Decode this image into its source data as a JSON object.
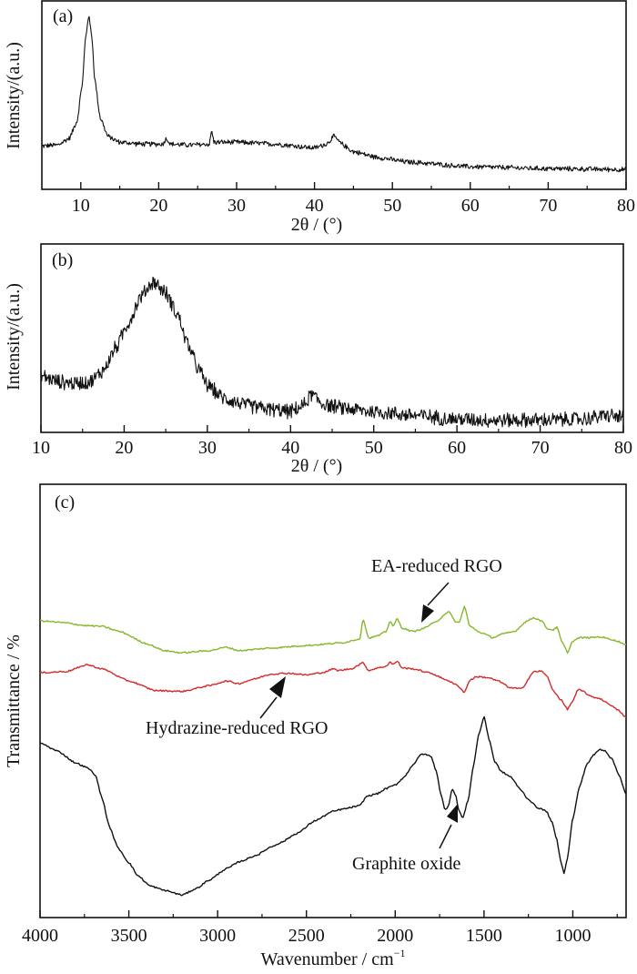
{
  "chart_data": [
    {
      "type": "line",
      "panel_label": "(a)",
      "xlabel": "2θ / (°)",
      "ylabel": "Intensity/(a.u.)",
      "xlim": [
        5,
        80
      ],
      "ylim": [
        0,
        100
      ],
      "xticks": [
        10,
        20,
        30,
        40,
        50,
        60,
        70,
        80
      ],
      "xtick_labels": [
        "10",
        "20",
        "30",
        "40",
        "50",
        "60",
        "70",
        "80"
      ],
      "minor_xticks": [
        15,
        25,
        35,
        45,
        55,
        65,
        75
      ],
      "grid": false,
      "series": [
        {
          "name": "XRD (a)",
          "color": "#111111",
          "noise": 3,
          "x": [
            5,
            7,
            8.5,
            9.5,
            10.2,
            10.6,
            11,
            11.4,
            11.8,
            12.5,
            13.5,
            15,
            18,
            20.5,
            21,
            21.5,
            24,
            26.5,
            26.8,
            27.1,
            30,
            35,
            40,
            41.5,
            42.5,
            43.5,
            45,
            48,
            52,
            60,
            70,
            80
          ],
          "y": [
            23,
            23.5,
            27,
            36,
            56,
            80,
            92,
            82,
            58,
            38,
            28,
            25,
            24,
            24,
            27,
            24,
            23.5,
            24,
            31,
            25,
            25,
            24,
            22,
            24,
            28,
            24,
            20,
            17,
            14.5,
            12,
            11,
            10.5
          ]
        }
      ]
    },
    {
      "type": "line",
      "panel_label": "(b)",
      "xlabel": "2θ / (°)",
      "ylabel": "Intensity/(a.u.)",
      "xlim": [
        10,
        80
      ],
      "ylim": [
        0,
        100
      ],
      "xticks": [
        10,
        20,
        30,
        40,
        50,
        60,
        70,
        80
      ],
      "xtick_labels": [
        "10",
        "20",
        "30",
        "40",
        "50",
        "60",
        "70",
        "80"
      ],
      "minor_xticks": [
        15,
        25,
        35,
        45,
        55,
        65,
        75
      ],
      "grid": false,
      "series": [
        {
          "name": "XRD (b)",
          "color": "#111111",
          "noise": 9,
          "x": [
            10,
            12,
            14,
            16,
            17.5,
            19,
            20.5,
            22,
            23.5,
            25,
            26.5,
            27.5,
            29,
            30,
            32,
            35,
            38,
            40,
            41.5,
            42.5,
            44,
            46,
            50,
            55,
            60,
            65,
            70,
            75,
            78,
            80
          ],
          "y": [
            30,
            27,
            26,
            27,
            33,
            45,
            58,
            72,
            80,
            74,
            62,
            48,
            33,
            25,
            18,
            14,
            12,
            11,
            14,
            20,
            15,
            13,
            11,
            9,
            7,
            6.5,
            6.5,
            7,
            9,
            8
          ]
        }
      ]
    },
    {
      "type": "line",
      "panel_label": "(c)",
      "xlabel": "Wavenumber / cm",
      "xlabel_superscript": "−1",
      "ylabel": "Transmittance / %",
      "xlim": [
        4000,
        700
      ],
      "ylim": [
        0,
        100
      ],
      "xticks": [
        4000,
        3500,
        3000,
        2500,
        2000,
        1500,
        1000
      ],
      "xtick_labels": [
        "4000",
        "3500",
        "3000",
        "2500",
        "2000",
        "1500",
        "1000"
      ],
      "minor_xticks": [
        3750,
        3250,
        2750,
        2250,
        1750,
        1250,
        750
      ],
      "grid": false,
      "annotations": [
        {
          "text": "EA-reduced RGO",
          "series": "EA-reduced RGO"
        },
        {
          "text": "Hydrazine-reduced RGO",
          "series": "Hydrazine-reduced RGO"
        },
        {
          "text": "Graphite oxide",
          "series": "Graphite oxide"
        }
      ],
      "series": [
        {
          "name": "EA-reduced RGO",
          "color": "#86b82a",
          "x": [
            4000,
            3850,
            3750,
            3650,
            3550,
            3400,
            3300,
            3200,
            3050,
            2950,
            2880,
            2700,
            2500,
            2300,
            2200,
            2180,
            2150,
            2100,
            2050,
            2030,
            2010,
            1990,
            1960,
            1900,
            1850,
            1780,
            1700,
            1660,
            1640,
            1610,
            1580,
            1520,
            1450,
            1400,
            1330,
            1260,
            1220,
            1180,
            1140,
            1110,
            1090,
            1060,
            1030,
            1000,
            960,
            900,
            850,
            800,
            750,
            700
          ],
          "y": [
            68.5,
            68.0,
            67.4,
            67.2,
            66.0,
            63.2,
            61.6,
            61.1,
            61.6,
            62.4,
            61.6,
            62.2,
            62.8,
            63.4,
            64.3,
            68.9,
            64.5,
            65.0,
            66.0,
            68.5,
            67.2,
            69.0,
            66.8,
            66.0,
            66.6,
            68.0,
            70.6,
            68.3,
            68.0,
            71.8,
            67.2,
            65.8,
            64.6,
            65.4,
            66.0,
            68.4,
            69.2,
            68.6,
            66.6,
            66.4,
            67.0,
            63.5,
            61.2,
            63.8,
            64.6,
            64.6,
            64.8,
            64.4,
            63.8,
            63.0
          ]
        },
        {
          "name": "Hydrazine-reduced RGO",
          "color": "#d42a2a",
          "x": [
            4000,
            3850,
            3780,
            3740,
            3650,
            3500,
            3350,
            3200,
            3050,
            2950,
            2880,
            2800,
            2700,
            2600,
            2500,
            2400,
            2350,
            2320,
            2250,
            2180,
            2150,
            2100,
            2050,
            2030,
            2010,
            1990,
            1960,
            1900,
            1800,
            1720,
            1650,
            1610,
            1580,
            1540,
            1480,
            1420,
            1350,
            1290,
            1220,
            1180,
            1150,
            1110,
            1070,
            1030,
            1000,
            970,
            940,
            900,
            850,
            800,
            750,
            700
          ],
          "y": [
            56.5,
            56.8,
            57.7,
            58.4,
            57.4,
            54.6,
            52.4,
            52.2,
            53.5,
            54.6,
            54.0,
            55.0,
            56.2,
            56.4,
            56.0,
            56.6,
            57.4,
            57.0,
            57.4,
            58.8,
            57.0,
            57.6,
            58.0,
            59.0,
            58.4,
            59.2,
            57.6,
            57.4,
            56.4,
            55.0,
            53.6,
            52.0,
            54.8,
            55.6,
            55.4,
            54.6,
            53.0,
            52.8,
            56.7,
            56.9,
            56.0,
            52.4,
            50.4,
            48.1,
            50.0,
            52.6,
            52.2,
            51.0,
            50.6,
            49.4,
            48.0,
            46.2
          ]
        },
        {
          "name": "Graphite oxide",
          "color": "#111111",
          "x": [
            4000,
            3900,
            3800,
            3730,
            3690,
            3650,
            3610,
            3560,
            3500,
            3450,
            3380,
            3300,
            3200,
            3120,
            3050,
            2950,
            2870,
            2780,
            2700,
            2650,
            2550,
            2450,
            2350,
            2300,
            2200,
            2160,
            2100,
            2050,
            2000,
            1950,
            1900,
            1850,
            1800,
            1770,
            1740,
            1720,
            1700,
            1680,
            1660,
            1640,
            1620,
            1590,
            1560,
            1530,
            1500,
            1470,
            1440,
            1400,
            1350,
            1300,
            1250,
            1200,
            1150,
            1120,
            1090,
            1070,
            1050,
            1030,
            1000,
            960,
            920,
            880,
            850,
            820,
            780,
            740,
            700
          ],
          "y": [
            40.3,
            38.4,
            35.7,
            34.5,
            33.0,
            27.5,
            21.0,
            16.0,
            12.7,
            9.7,
            7.3,
            6.3,
            5.2,
            6.7,
            8.6,
            11.3,
            13.0,
            14.4,
            16.3,
            17.2,
            19.5,
            22.4,
            24.5,
            25.0,
            25.8,
            28.0,
            28.6,
            29.8,
            30.6,
            32.4,
            35.3,
            37.8,
            37.3,
            34.0,
            28.0,
            24.8,
            25.8,
            29.8,
            28.2,
            24.6,
            22.9,
            27.0,
            34.9,
            42.2,
            46.3,
            41.0,
            36.0,
            33.6,
            32.5,
            29.8,
            27.3,
            25.4,
            24.6,
            22.3,
            18.0,
            13.4,
            10.3,
            13.8,
            22.9,
            30.5,
            35.5,
            37.6,
            38.8,
            38.6,
            36.6,
            33.0,
            28.4
          ]
        }
      ]
    }
  ]
}
